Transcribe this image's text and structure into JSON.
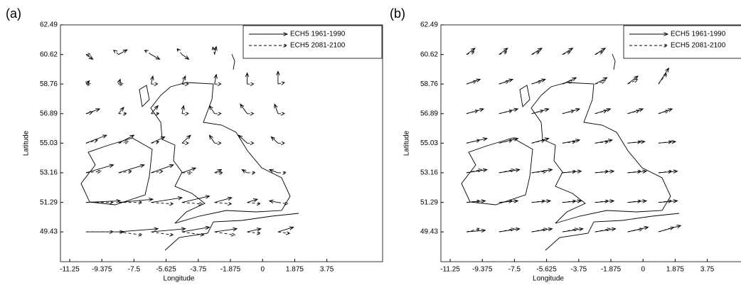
{
  "chart_data": [
    {
      "type": "quiver",
      "panel": "(a)",
      "xlabel": "Longitude",
      "ylabel": "Latitude",
      "xlim": [
        -11.79,
        7.0
      ],
      "ylim": [
        47.55,
        62.49
      ],
      "xticks": [
        -11.25,
        -9.375,
        -7.5,
        -5.625,
        -3.75,
        -1.875,
        0,
        1.875,
        3.75
      ],
      "yticks": [
        49.43,
        51.29,
        53.16,
        55.03,
        56.89,
        58.76,
        60.62,
        62.49
      ],
      "legend": "upper right",
      "x": [
        -10.3,
        -8.4,
        -6.5,
        -4.7,
        -2.8,
        -0.9,
        0.9
      ],
      "y": [
        60.62,
        58.76,
        56.89,
        55.03,
        53.16,
        51.29,
        49.43
      ],
      "series": [
        {
          "name": "ECH5 1961-1990",
          "color": "#000000",
          "linestyle": "solid",
          "u": [
            [
              0.4,
              0.5,
              0.5,
              0.4,
              0.1,
              0.1,
              0.1
            ],
            [
              0.2,
              0.1,
              0.1,
              0.2,
              0.1,
              0,
              0
            ],
            [
              0.8,
              0.3,
              0.4,
              0.1,
              -0.3,
              -0.4,
              -0.2
            ],
            [
              1.2,
              0.9,
              0.8,
              0.5,
              -0.3,
              -0.5,
              -0.4
            ],
            [
              1.6,
              1.5,
              1.3,
              0.8,
              0.4,
              -0.3,
              -0.5
            ],
            [
              2.0,
              2.0,
              1.8,
              1.6,
              1.0,
              0.6,
              -0.5
            ],
            [
              2.2,
              2.3,
              2.0,
              1.6,
              1.3,
              0.8,
              0.9
            ]
          ],
          "v": [
            [
              -0.3,
              0.3,
              -0.3,
              -0.3,
              0.5,
              0.3,
              0.6
            ],
            [
              0.2,
              0.3,
              0.5,
              0.5,
              0.6,
              0.7,
              0.8
            ],
            [
              0.3,
              0.4,
              0.5,
              0.5,
              0.5,
              0.6,
              0.6
            ],
            [
              0.5,
              0.5,
              0.4,
              0.5,
              0.5,
              0.5,
              0.4
            ],
            [
              0.5,
              0.5,
              0.5,
              0.3,
              0.2,
              0.2,
              0.2
            ],
            [
              0.1,
              0.2,
              0.3,
              0.4,
              0.3,
              0.2,
              0.1
            ],
            [
              0,
              0.2,
              0.2,
              0.3,
              0.2,
              0.2,
              0.3
            ]
          ]
        },
        {
          "name": "ECH5 2081-2100",
          "color": "#000000",
          "linestyle": "dashed",
          "u": [
            [
              0.3,
              -0.3,
              -0.4,
              -0.3,
              -0.1,
              0.1,
              0.3
            ],
            [
              0.3,
              0.3,
              0.4,
              0.4,
              0.4,
              0.4,
              0.4
            ],
            [
              0.4,
              0.5,
              0.5,
              0.4,
              0.4,
              0.4,
              0.4
            ],
            [
              0.7,
              0.6,
              0.5,
              0.4,
              0.4,
              0.4,
              0.4
            ],
            [
              0.9,
              0.8,
              0.7,
              0.6,
              0.5,
              0.5,
              0.5
            ],
            [
              1.6,
              1.4,
              1.3,
              1.2,
              1.0,
              0.8,
              0.6
            ],
            [
              1.6,
              1.4,
              1.3,
              1.3,
              1.2,
              0.8,
              0.7
            ]
          ],
          "v": [
            [
              0,
              0.3,
              0.3,
              0.4,
              0.5,
              0.2,
              0.2
            ],
            [
              0,
              0,
              0,
              0,
              0,
              0,
              0.1
            ],
            [
              0.1,
              0,
              0,
              0,
              0,
              0,
              0
            ],
            [
              0.2,
              0.1,
              0.1,
              0,
              0,
              0,
              0
            ],
            [
              0.1,
              0.1,
              0.1,
              0,
              0,
              0,
              0
            ],
            [
              0,
              0,
              -0.1,
              -0.1,
              -0.1,
              -0.1,
              -0.1
            ],
            [
              0,
              -0.2,
              -0.2,
              -0.2,
              -0.2,
              -0.1,
              -0.1
            ]
          ]
        }
      ]
    },
    {
      "type": "quiver",
      "panel": "(b)",
      "xlabel": "Longitude",
      "ylabel": "Latitude",
      "xlim": [
        -11.79,
        7.0
      ],
      "ylim": [
        47.55,
        62.49
      ],
      "xticks": [
        -11.25,
        -9.375,
        -7.5,
        -5.625,
        -3.75,
        -1.875,
        0,
        1.875,
        3.75
      ],
      "yticks": [
        49.43,
        51.29,
        53.16,
        55.03,
        56.89,
        58.76,
        60.62,
        62.49
      ],
      "legend": "upper right",
      "x": [
        -10.3,
        -8.4,
        -6.5,
        -4.7,
        -2.8,
        -0.9,
        0.9
      ],
      "y": [
        60.62,
        58.76,
        56.89,
        55.03,
        53.16,
        51.29,
        49.43
      ],
      "series": [
        {
          "name": "ECH5 1961-1990",
          "color": "#000000",
          "linestyle": "solid",
          "u": [
            [
              0.5,
              0.5,
              0.6,
              0.6,
              0.6,
              0.6,
              0.6
            ],
            [
              0.8,
              0.8,
              0.8,
              0.8,
              0.7,
              0.6,
              0.6
            ],
            [
              1.0,
              1.1,
              1.0,
              1.0,
              0.9,
              0.9,
              0.8
            ],
            [
              1.2,
              1.1,
              1.0,
              1.0,
              1.0,
              1.0,
              1.0
            ],
            [
              1.2,
              1.2,
              1.2,
              1.1,
              1.1,
              1.1,
              1.1
            ],
            [
              1.1,
              1.1,
              1.1,
              1.1,
              1.1,
              1.1,
              1.1
            ],
            [
              1.1,
              1.2,
              1.2,
              1.2,
              1.2,
              1.2,
              1.3
            ]
          ],
          "v": [
            [
              0.4,
              0.4,
              0.4,
              0.4,
              0.4,
              0.4,
              0.5
            ],
            [
              0.3,
              0.3,
              0.3,
              0.4,
              0.4,
              0.5,
              1.0
            ],
            [
              0.3,
              0.3,
              0.3,
              0.3,
              0.3,
              0.3,
              0.3
            ],
            [
              0.3,
              0.3,
              0.3,
              0.2,
              0.2,
              0.1,
              0.1
            ],
            [
              0.2,
              0.2,
              0.2,
              0.1,
              0.1,
              0.1,
              0.1
            ],
            [
              0.1,
              0.1,
              0.1,
              0.1,
              0.1,
              0.1,
              0.1
            ],
            [
              0.1,
              0.2,
              0.2,
              0.2,
              0.2,
              0.3,
              0.4
            ]
          ]
        },
        {
          "name": "ECH5 2081-2100",
          "color": "#000000",
          "linestyle": "dashed",
          "u": [
            [
              0.5,
              0.5,
              0.5,
              0.5,
              0.5,
              0.5,
              0.5
            ],
            [
              0.6,
              0.6,
              0.6,
              0.6,
              0.6,
              0.6,
              0.5
            ],
            [
              0.7,
              0.8,
              0.7,
              0.7,
              0.7,
              0.7,
              0.6
            ],
            [
              0.8,
              0.8,
              0.8,
              0.8,
              0.8,
              0.8,
              0.8
            ],
            [
              0.9,
              0.9,
              0.9,
              0.8,
              0.8,
              0.8,
              0.8
            ],
            [
              0.8,
              0.8,
              0.8,
              0.8,
              0.8,
              0.8,
              0.8
            ],
            [
              0.8,
              0.9,
              0.9,
              0.9,
              0.9,
              0.9,
              0.9
            ]
          ],
          "v": [
            [
              0.2,
              0.2,
              0.2,
              0.2,
              0.2,
              0.2,
              0.3
            ],
            [
              0.2,
              0.2,
              0.2,
              0.2,
              0.2,
              0.3,
              0.7
            ],
            [
              0.2,
              0.2,
              0.2,
              0.2,
              0.2,
              0.2,
              0.2
            ],
            [
              0.2,
              0.2,
              0.2,
              0.1,
              0.1,
              0.1,
              0.1
            ],
            [
              0.2,
              0.2,
              0.1,
              0.1,
              0.1,
              0.1,
              0.1
            ],
            [
              0.1,
              0.1,
              0.1,
              0.1,
              0.1,
              0.1,
              0.1
            ],
            [
              0.2,
              0.2,
              0.2,
              0.2,
              0.2,
              0.2,
              0.3
            ]
          ]
        }
      ]
    }
  ]
}
